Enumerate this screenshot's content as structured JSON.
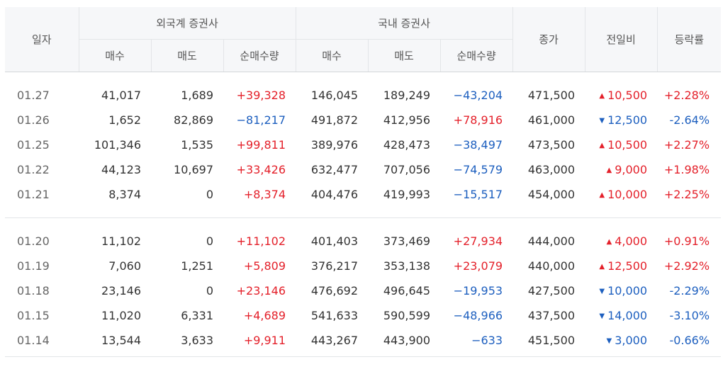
{
  "table": {
    "headers": {
      "date": "일자",
      "foreign_group": "외국계 증권사",
      "domestic_group": "국내 증권사",
      "close": "종가",
      "change": "전일비",
      "rate": "등락률",
      "buy": "매수",
      "sell": "매도",
      "net": "순매수량"
    },
    "groups": [
      {
        "rows": [
          {
            "date": "01.27",
            "f_buy": "41,017",
            "f_sell": "1,689",
            "f_net": "+39,328",
            "d_buy": "146,045",
            "d_sell": "189,249",
            "d_net": "−43,204",
            "close": "471,500",
            "change": "10,500",
            "dir": "up",
            "rate": "+2.28%"
          },
          {
            "date": "01.26",
            "f_buy": "1,652",
            "f_sell": "82,869",
            "f_net": "−81,217",
            "d_buy": "491,872",
            "d_sell": "412,956",
            "d_net": "+78,916",
            "close": "461,000",
            "change": "12,500",
            "dir": "down",
            "rate": "-2.64%"
          },
          {
            "date": "01.25",
            "f_buy": "101,346",
            "f_sell": "1,535",
            "f_net": "+99,811",
            "d_buy": "389,976",
            "d_sell": "428,473",
            "d_net": "−38,497",
            "close": "473,500",
            "change": "10,500",
            "dir": "up",
            "rate": "+2.27%"
          },
          {
            "date": "01.22",
            "f_buy": "44,123",
            "f_sell": "10,697",
            "f_net": "+33,426",
            "d_buy": "632,477",
            "d_sell": "707,056",
            "d_net": "−74,579",
            "close": "463,000",
            "change": "9,000",
            "dir": "up",
            "rate": "+1.98%"
          },
          {
            "date": "01.21",
            "f_buy": "8,374",
            "f_sell": "0",
            "f_net": "+8,374",
            "d_buy": "404,476",
            "d_sell": "419,993",
            "d_net": "−15,517",
            "close": "454,000",
            "change": "10,000",
            "dir": "up",
            "rate": "+2.25%"
          }
        ]
      },
      {
        "rows": [
          {
            "date": "01.20",
            "f_buy": "11,102",
            "f_sell": "0",
            "f_net": "+11,102",
            "d_buy": "401,403",
            "d_sell": "373,469",
            "d_net": "+27,934",
            "close": "444,000",
            "change": "4,000",
            "dir": "up",
            "rate": "+0.91%"
          },
          {
            "date": "01.19",
            "f_buy": "7,060",
            "f_sell": "1,251",
            "f_net": "+5,809",
            "d_buy": "376,217",
            "d_sell": "353,138",
            "d_net": "+23,079",
            "close": "440,000",
            "change": "12,500",
            "dir": "up",
            "rate": "+2.92%"
          },
          {
            "date": "01.18",
            "f_buy": "23,146",
            "f_sell": "0",
            "f_net": "+23,146",
            "d_buy": "476,692",
            "d_sell": "496,645",
            "d_net": "−19,953",
            "close": "427,500",
            "change": "10,000",
            "dir": "down",
            "rate": "-2.29%"
          },
          {
            "date": "01.15",
            "f_buy": "11,020",
            "f_sell": "6,331",
            "f_net": "+4,689",
            "d_buy": "541,633",
            "d_sell": "590,599",
            "d_net": "−48,966",
            "close": "437,500",
            "change": "14,000",
            "dir": "down",
            "rate": "-3.10%"
          },
          {
            "date": "01.14",
            "f_buy": "13,544",
            "f_sell": "3,633",
            "f_net": "+9,911",
            "d_buy": "443,267",
            "d_sell": "443,900",
            "d_net": "−633",
            "close": "451,500",
            "change": "3,000",
            "dir": "down",
            "rate": "-0.66%"
          }
        ]
      }
    ]
  },
  "colors": {
    "up": "#e4202a",
    "down": "#1d5fbf"
  },
  "icons": {
    "up": "triangle-up-icon",
    "down": "triangle-down-icon"
  }
}
